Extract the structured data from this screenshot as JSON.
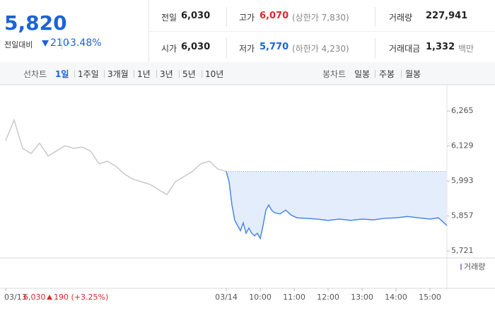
{
  "header": {
    "price": "5,820",
    "change_label": "전일대비",
    "change": "210",
    "change_pct": "-3.48%",
    "stats": [
      {
        "label": "전일",
        "value": "6,030"
      },
      {
        "label": "고가",
        "value": "6,070",
        "note": "(상한가 7,830)"
      },
      {
        "label": "거래량",
        "value": "227,941"
      },
      {
        "label": "시가",
        "value": "6,030"
      },
      {
        "label": "저가",
        "value": "5,770",
        "note": "(하한가 4,230)"
      },
      {
        "label": "거래대금",
        "value": "1,332",
        "note": "백만"
      }
    ]
  },
  "tabs": {
    "line_label": "선차트",
    "line_tabs": [
      "1일",
      "1주일",
      "3개월",
      "1년",
      "3년",
      "5년",
      "10년"
    ],
    "candle_label": "봉차트",
    "candle_tabs": [
      "일봉",
      "주봉",
      "월봉"
    ]
  },
  "chart_data": {
    "type": "line",
    "series": [
      {
        "name": "03/13",
        "color": "#c9c9c9",
        "x": [
          -390,
          -375,
          -360,
          -345,
          -330,
          -315,
          -300,
          -285,
          -270,
          -255,
          -240,
          -225,
          -210,
          -195,
          -180,
          -165,
          -150,
          -135,
          -120,
          -105,
          -90,
          -75,
          -60,
          -45,
          -30,
          -15,
          0
        ],
        "values": [
          6150,
          6230,
          6120,
          6100,
          6140,
          6090,
          6110,
          6130,
          6120,
          6125,
          6110,
          6060,
          6070,
          6050,
          6020,
          6000,
          5990,
          5980,
          5960,
          5940,
          5990,
          6010,
          6030,
          6060,
          6070,
          6040,
          6030
        ]
      },
      {
        "name": "03/14",
        "color": "#4a86e8",
        "x": [
          0,
          5,
          10,
          15,
          20,
          25,
          30,
          35,
          40,
          45,
          50,
          55,
          60,
          65,
          70,
          75,
          80,
          85,
          95,
          105,
          115,
          125,
          140,
          160,
          180,
          200,
          220,
          240,
          260,
          280,
          300,
          320,
          340,
          360,
          375,
          385,
          390
        ],
        "values": [
          6030,
          5990,
          5900,
          5840,
          5820,
          5800,
          5830,
          5790,
          5810,
          5790,
          5780,
          5790,
          5770,
          5820,
          5880,
          5900,
          5880,
          5870,
          5865,
          5880,
          5860,
          5850,
          5848,
          5845,
          5840,
          5845,
          5840,
          5845,
          5842,
          5848,
          5850,
          5855,
          5850,
          5845,
          5850,
          5830,
          5820
        ]
      }
    ],
    "baseline": 6030,
    "area_color": "#e4edfb",
    "xlim": [
      -400,
      390
    ],
    "xticks": [
      {
        "value": -390,
        "label": "03/13"
      },
      {
        "value": 0,
        "label": "03/14"
      },
      {
        "value": 60,
        "label": "10:00"
      },
      {
        "value": 120,
        "label": "11:00"
      },
      {
        "value": 180,
        "label": "12:00"
      },
      {
        "value": 240,
        "label": "13:00"
      },
      {
        "value": 300,
        "label": "14:00"
      },
      {
        "value": 360,
        "label": "15:00"
      }
    ],
    "ylim": [
      5694,
      6345
    ],
    "yticks": [
      {
        "value": 6265,
        "label": "6,265"
      },
      {
        "value": 6129,
        "label": "6,129"
      },
      {
        "value": 5993,
        "label": "5,993"
      },
      {
        "value": 5857,
        "label": "5,857"
      },
      {
        "value": 5721,
        "label": "5,721"
      }
    ],
    "volume_label": "거래량",
    "prev_info": {
      "price": "6,030",
      "change": "190 (+3.25%)"
    }
  }
}
